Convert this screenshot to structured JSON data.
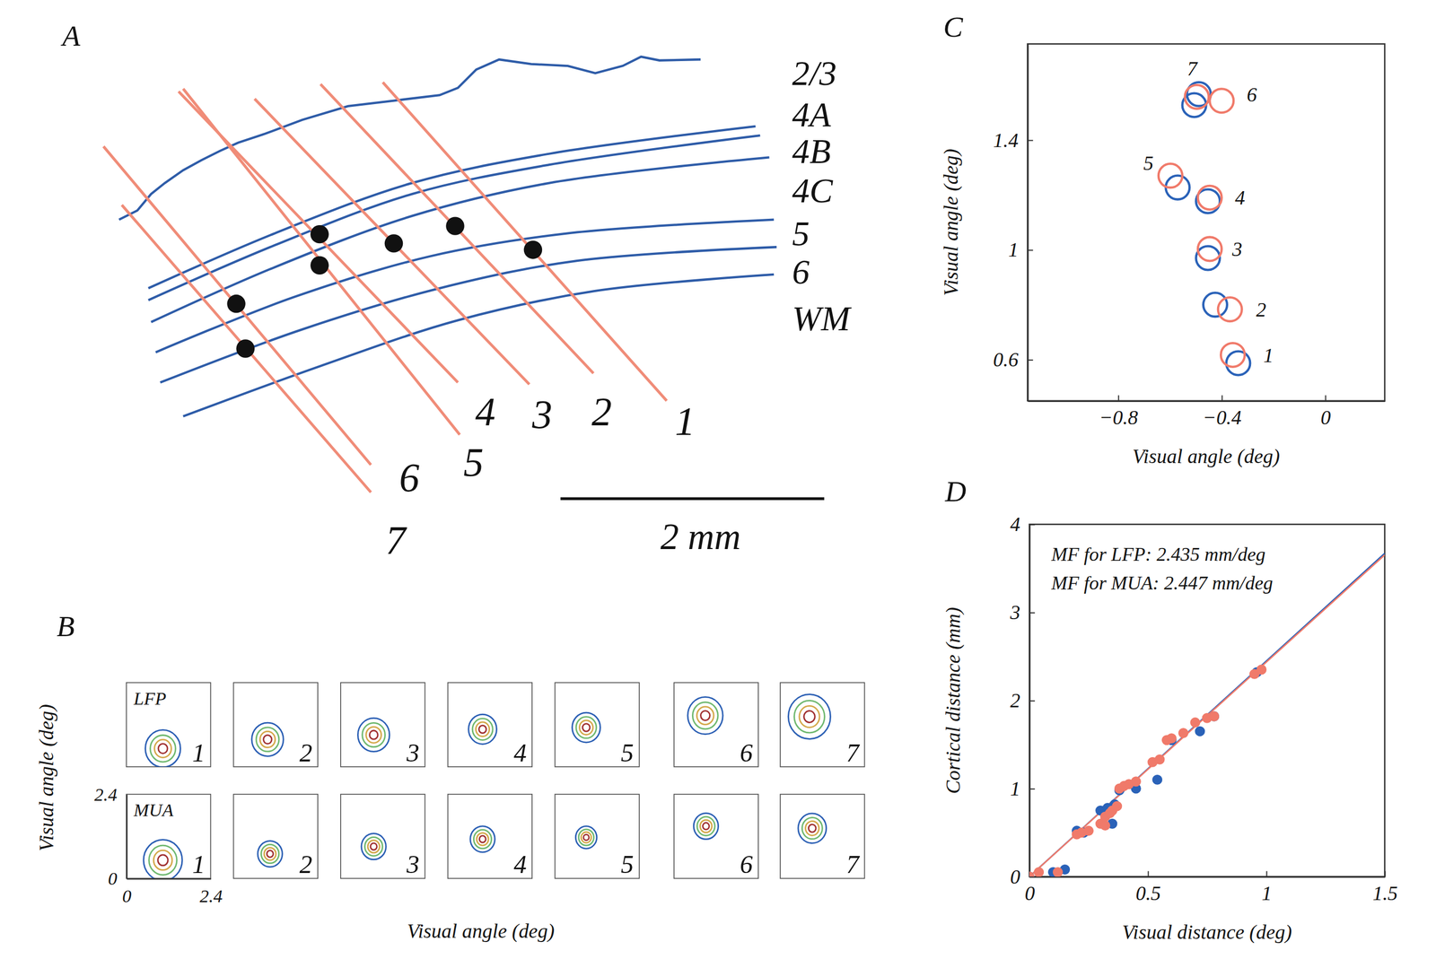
{
  "diagram": {
    "panel": "A",
    "layers": [
      "2/3",
      "4A",
      "4B",
      "4C",
      "5",
      "6",
      "WM"
    ],
    "electrodes": [
      "1",
      "2",
      "3",
      "4",
      "5",
      "6",
      "7"
    ],
    "scale_bar": "2 mm"
  },
  "chart_data": [
    {
      "panel": "B",
      "type": "contour",
      "x_label": "Visual angle (deg)",
      "y_label": "Visual angle (deg)",
      "categories": [
        "1",
        "2",
        "3",
        "4",
        "5",
        "6",
        "7"
      ],
      "xlim": [
        0,
        2.4
      ],
      "ylim": [
        0,
        2.4
      ],
      "xticks": [
        0,
        2.4
      ],
      "yticks": [
        0,
        2.4
      ],
      "series": [
        {
          "name": "LFP",
          "x": [
            1.04,
            0.97,
            0.94,
            0.99,
            0.89,
            0.89,
            0.83
          ],
          "values": [
            0.52,
            0.78,
            0.91,
            1.07,
            1.12,
            1.46,
            1.43
          ],
          "sizes": [
            0.5,
            0.45,
            0.45,
            0.4,
            0.4,
            0.5,
            0.6
          ]
        },
        {
          "name": "MUA",
          "x": [
            1.04,
            1.04,
            0.94,
            0.99,
            0.89,
            0.91,
            0.91
          ],
          "values": [
            0.52,
            0.7,
            0.91,
            1.12,
            1.17,
            1.49,
            1.43
          ],
          "sizes": [
            0.55,
            0.35,
            0.35,
            0.35,
            0.3,
            0.35,
            0.4
          ]
        }
      ]
    },
    {
      "panel": "C",
      "type": "scatter",
      "marker": "open-circle",
      "x_label": "Visual angle (deg)",
      "y_label": "Visual angle (deg)",
      "categories": [
        "1",
        "2",
        "3",
        "4",
        "5",
        "6",
        "7"
      ],
      "xlim": [
        -1.15,
        0.23
      ],
      "ylim": [
        0.45,
        1.75
      ],
      "xticks": [
        {
          "value": -0.8,
          "label": "−0.8"
        },
        {
          "value": -0.4,
          "label": "−0.4"
        },
        0
      ],
      "yticks": [
        0.6,
        1,
        1.4
      ],
      "series": [
        {
          "color": "#f07a6a",
          "x": [
            -0.357,
            -0.368,
            -0.446,
            -0.446,
            -0.598,
            -0.4,
            -0.496
          ],
          "values": [
            0.617,
            0.783,
            1.003,
            1.19,
            1.27,
            1.543,
            1.557
          ]
        },
        {
          "color": "#2a62b8",
          "x": [
            -0.336,
            -0.425,
            -0.453,
            -0.453,
            -0.57,
            -0.506,
            -0.488
          ],
          "values": [
            0.587,
            0.8,
            0.97,
            1.177,
            1.227,
            1.527,
            1.567
          ]
        }
      ]
    },
    {
      "panel": "D",
      "type": "scatter",
      "marker": "circle",
      "x_label": "Visual distance (deg)",
      "y_label": "Cortical distance (mm)",
      "annotations": [
        "MF for LFP: 2.435 mm/deg",
        "MF for MUA: 2.447 mm/deg"
      ],
      "xlim": [
        0,
        1.5
      ],
      "ylim": [
        0,
        4
      ],
      "xticks": [
        0,
        0.5,
        1,
        1.5
      ],
      "yticks": [
        0,
        1,
        2,
        3,
        4
      ],
      "series": [
        {
          "color": "#f07a6a",
          "slope": 2.435,
          "x": [
            0,
            0.04,
            0.12,
            0.2,
            0.22,
            0.25,
            0.3,
            0.32,
            0.32,
            0.34,
            0.35,
            0.37,
            0.38,
            0.4,
            0.42,
            0.45,
            0.52,
            0.55,
            0.58,
            0.6,
            0.65,
            0.7,
            0.75,
            0.78,
            0.95,
            0.98
          ],
          "values": [
            0,
            0.05,
            0.05,
            0.48,
            0.5,
            0.52,
            0.6,
            0.68,
            0.58,
            0.72,
            0.75,
            0.8,
            1.0,
            1.03,
            1.05,
            1.08,
            1.3,
            1.33,
            1.55,
            1.57,
            1.63,
            1.75,
            1.8,
            1.82,
            2.3,
            2.35
          ]
        },
        {
          "color": "#2a62b8",
          "slope": 2.447,
          "x": [
            0,
            0.1,
            0.15,
            0.2,
            0.23,
            0.3,
            0.33,
            0.35,
            0.36,
            0.38,
            0.45,
            0.54,
            0.6,
            0.72,
            0.78,
            0.96
          ],
          "values": [
            0,
            0.05,
            0.08,
            0.52,
            0.5,
            0.75,
            0.78,
            0.6,
            0.82,
            0.98,
            1.0,
            1.1,
            1.55,
            1.65,
            1.82,
            2.32
          ]
        }
      ]
    }
  ]
}
